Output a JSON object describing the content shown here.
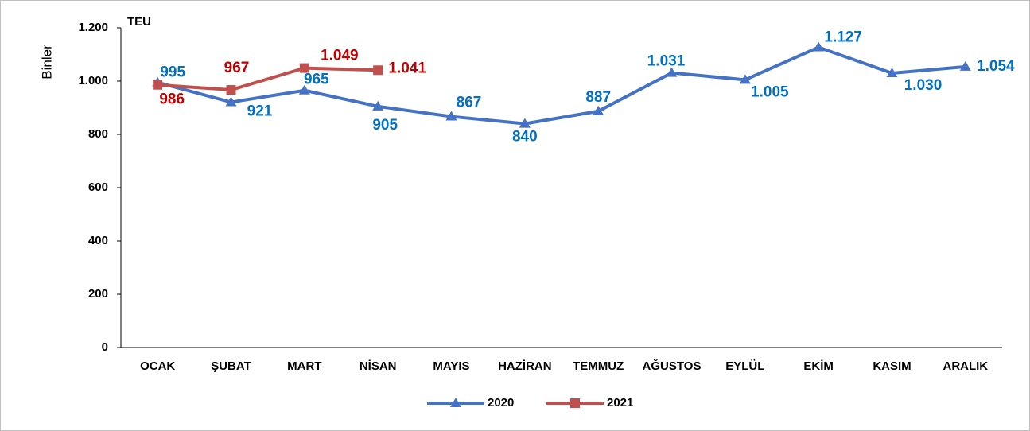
{
  "chart_data": {
    "type": "line",
    "y_axis_label": "Binler",
    "annotation": "TEU",
    "categories": [
      "OCAK",
      "ŞUBAT",
      "MART",
      "NİSAN",
      "MAYIS",
      "HAZİRAN",
      "TEMMUZ",
      "AĞUSTOS",
      "EYLÜL",
      "EKİM",
      "KASIM",
      "ARALIK"
    ],
    "series": [
      {
        "name": "2020",
        "color": "#4472c4",
        "label_color": "#0070c0",
        "marker": "triangle",
        "values": [
          995,
          921,
          965,
          905,
          867,
          840,
          887,
          1031,
          1005,
          1127,
          1030,
          1054
        ],
        "value_labels": [
          "995",
          "921",
          "965",
          "905",
          "867",
          "840",
          "887",
          "1.031",
          "1.005",
          "1.127",
          "1.030",
          "1.054"
        ]
      },
      {
        "name": "2021",
        "color": "#c0504d",
        "label_color": "#c00000",
        "marker": "square",
        "values": [
          986,
          967,
          1049,
          1041,
          null,
          null,
          null,
          null,
          null,
          null,
          null,
          null
        ],
        "value_labels": [
          "986",
          "967",
          "1.049",
          "1.041",
          null,
          null,
          null,
          null,
          null,
          null,
          null,
          null
        ]
      }
    ],
    "ylim": [
      0,
      1200
    ],
    "yticks": [
      0,
      200,
      400,
      600,
      800,
      {
        "value": 1000,
        "label": "1.000"
      },
      {
        "value": 1200,
        "label": "1.200"
      }
    ],
    "grid": false,
    "legend": "bottom"
  }
}
